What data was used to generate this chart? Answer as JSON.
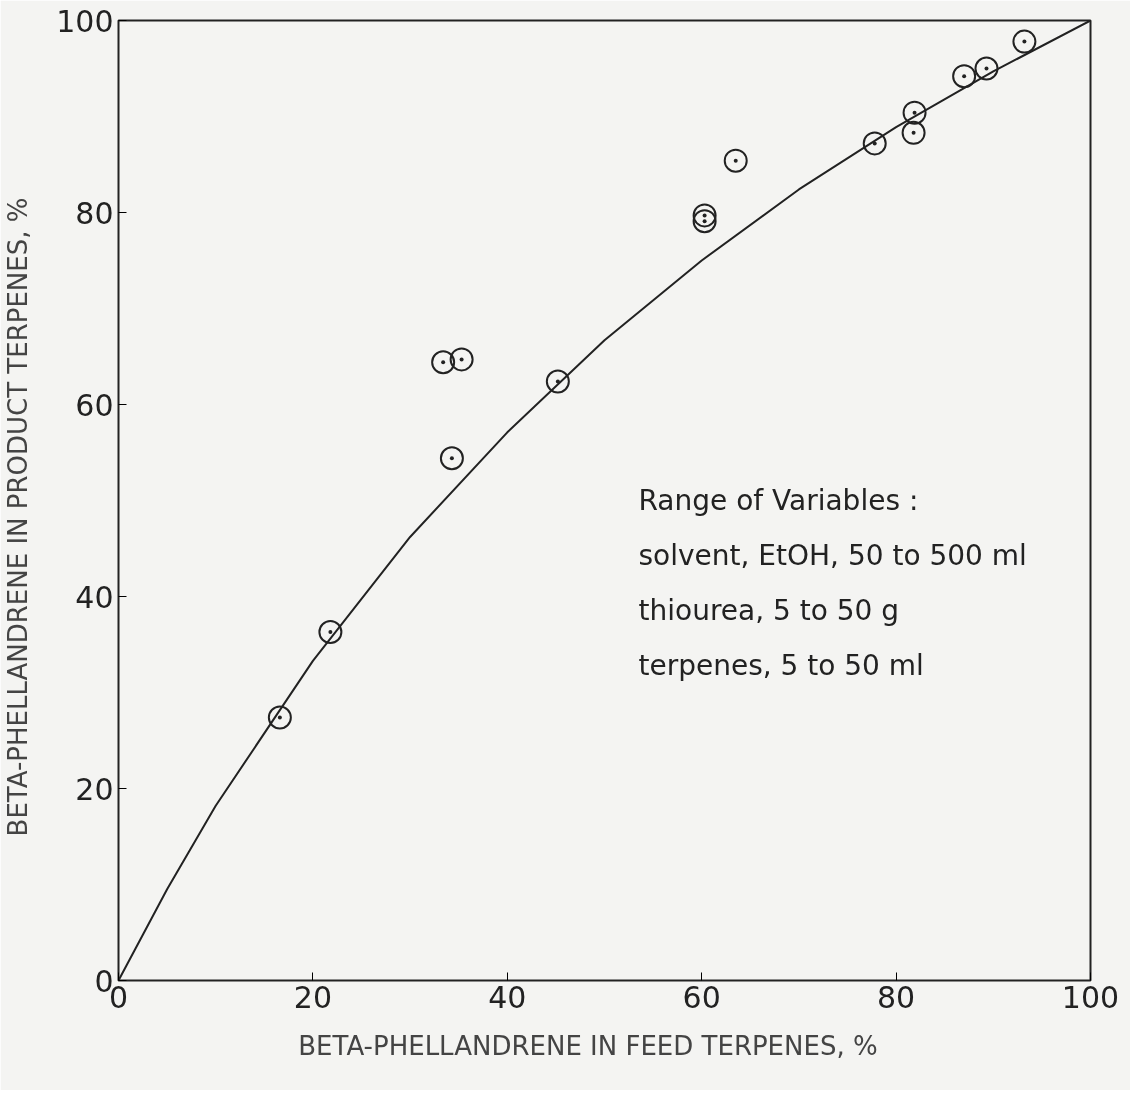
{
  "chart_data": {
    "type": "scatter",
    "xlabel": "BETA-PHELLANDRENE  IN  FEED  TERPENES,  %",
    "ylabel": "BETA-PHELLANDRENE  IN  PRODUCT  TERPENES,  %",
    "xlim": [
      0,
      100
    ],
    "ylim": [
      0,
      100
    ],
    "xticks": [
      0,
      20,
      40,
      60,
      80,
      100
    ],
    "yticks": [
      0,
      20,
      40,
      60,
      80,
      100
    ],
    "grid": false,
    "series": [
      {
        "color": "#222222",
        "marker": "circle",
        "x": [
          16.6,
          21.8,
          33.4,
          35.3,
          34.3,
          45.2,
          60.3,
          60.3,
          63.5,
          77.8,
          81.9,
          81.8,
          87.0,
          89.3,
          93.2
        ],
        "values": [
          27.4,
          36.3,
          64.4,
          64.7,
          54.4,
          62.4,
          79.7,
          79.1,
          85.4,
          87.2,
          90.4,
          88.3,
          94.2,
          95.0,
          97.8
        ]
      },
      {
        "type": "line",
        "color": "#222222",
        "line_style": "solid",
        "x": [
          0,
          5,
          10,
          20,
          30,
          40,
          50,
          60,
          70,
          80,
          90,
          100
        ],
        "values": [
          0,
          9.5,
          18.2,
          33.3,
          46.2,
          57.1,
          66.7,
          75,
          82.4,
          88.9,
          94.7,
          100
        ]
      }
    ],
    "annotations": [
      "Range of Variables :",
      "solvent, EtOH, 50 to 500 ml",
      "thiourea, 5 to 50 g",
      "terpenes, 5 to 50 ml"
    ]
  }
}
